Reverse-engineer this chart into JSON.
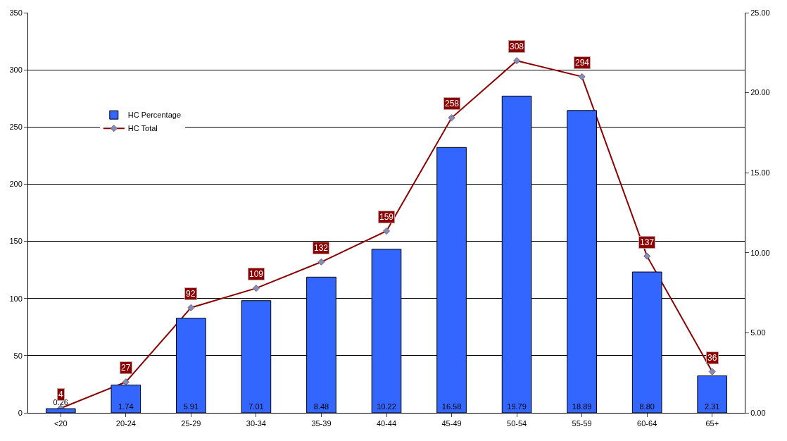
{
  "chart_data": {
    "type": "bar",
    "categories": [
      "<20",
      "20-24",
      "25-29",
      "30-34",
      "35-39",
      "40-44",
      "45-49",
      "50-54",
      "55-59",
      "60-64",
      "65+"
    ],
    "series": [
      {
        "name": "HC Percentage",
        "axis": "y2",
        "color": "#3366ff",
        "values": [
          0.26,
          1.74,
          5.91,
          7.01,
          8.48,
          10.22,
          16.58,
          19.79,
          18.89,
          8.8,
          2.31
        ],
        "value_labels": [
          "0.26",
          "1.74",
          "5.91",
          "7.01",
          "8.48",
          "10.22",
          "16.58",
          "19.79",
          "18.89",
          "8.80",
          "2.31"
        ]
      },
      {
        "name": "HC Total",
        "type": "line",
        "axis": "y",
        "color": "#8b0000",
        "values": [
          4,
          27,
          92,
          109,
          132,
          159,
          258,
          308,
          294,
          137,
          36
        ],
        "value_labels": [
          "4",
          "27",
          "92",
          "109",
          "132",
          "159",
          "258",
          "308",
          "294",
          "137",
          "36"
        ]
      }
    ],
    "ylim": [
      0,
      350
    ],
    "yticks": [
      0,
      50,
      100,
      150,
      200,
      250,
      300,
      350
    ],
    "y2lim": [
      0,
      25
    ],
    "y2ticks": [
      {
        "value": 0,
        "label": "0.00"
      },
      {
        "value": 5,
        "label": "5.00"
      },
      {
        "value": 10,
        "label": "10.00"
      },
      {
        "value": 15,
        "label": "15.00"
      },
      {
        "value": 20,
        "label": "20.00"
      },
      {
        "value": 25,
        "label": "25.00"
      }
    ],
    "grid": "y",
    "legend": "top left",
    "marker": "diamond"
  }
}
